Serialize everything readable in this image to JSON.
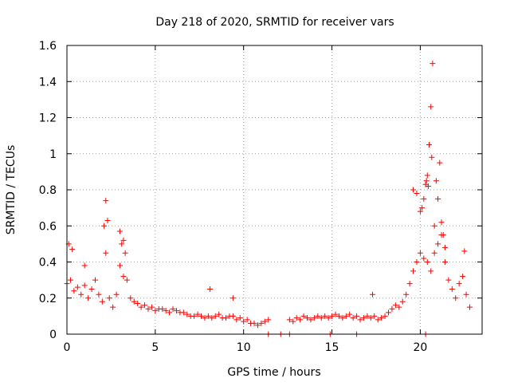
{
  "chart_data": {
    "type": "scatter",
    "title": "Day 218 of 2020, SRMTID for receiver vars",
    "xlabel": "GPS time / hours",
    "ylabel": "SRMTID / TECUs",
    "xlim": [
      0,
      23.5
    ],
    "ylim": [
      0,
      1.6
    ],
    "xticks": [
      0,
      5,
      10,
      15,
      20
    ],
    "xtick_labels": [
      "0",
      "5",
      "10",
      "15",
      "20"
    ],
    "yticks": [
      0,
      0.2,
      0.4,
      0.6,
      0.8,
      1.0,
      1.2,
      1.4,
      1.6
    ],
    "ytick_labels": [
      "0",
      "0.2",
      "0.4",
      "0.6",
      "0.8",
      "1",
      "1.2",
      "1.4",
      "1.6"
    ],
    "grid": true,
    "marker": "+",
    "marker_color": "#ff0000",
    "series": [
      {
        "name": "SRMTID",
        "x": [
          0.0,
          0.2,
          0.4,
          0.6,
          0.8,
          1.0,
          1.2,
          1.4,
          1.6,
          1.8,
          2.0,
          2.2,
          2.4,
          2.6,
          2.8,
          3.0,
          3.2,
          3.4,
          3.6,
          3.8,
          4.0,
          4.2,
          4.4,
          4.6,
          4.8,
          5.0,
          5.2,
          5.4,
          5.6,
          5.8,
          6.0,
          6.2,
          6.4,
          6.6,
          6.8,
          7.0,
          7.2,
          7.4,
          7.6,
          7.8,
          8.0,
          8.2,
          8.4,
          8.6,
          8.8,
          9.0,
          9.2,
          9.4,
          9.6,
          9.8,
          10.0,
          10.2,
          10.4,
          10.6,
          10.8,
          11.0,
          11.2,
          11.4,
          12.6,
          12.8,
          13.0,
          13.2,
          13.4,
          13.6,
          13.8,
          14.0,
          14.2,
          14.4,
          14.6,
          14.8,
          15.0,
          15.2,
          15.4,
          15.6,
          15.8,
          16.0,
          16.2,
          16.4,
          16.6,
          16.8,
          17.0,
          17.2,
          17.4,
          17.6,
          17.8,
          18.0,
          18.2,
          18.4,
          18.6,
          18.8,
          19.0,
          19.2,
          19.4,
          19.6,
          19.8,
          20.0,
          20.2,
          20.4,
          20.6,
          20.8,
          21.0,
          21.2,
          21.4,
          21.6,
          21.8,
          22.0,
          22.2,
          22.4,
          22.6,
          22.8,
          0.1,
          0.3,
          1.0,
          2.2,
          2.1,
          2.3,
          3.0,
          3.1,
          3.2,
          3.3,
          8.1,
          9.4,
          17.3,
          19.6,
          19.8,
          20.0,
          20.1,
          20.2,
          20.3,
          20.35,
          20.4,
          20.45,
          20.5,
          20.6,
          20.65,
          20.7,
          20.8,
          20.9,
          21.0,
          21.1,
          21.2,
          21.3,
          21.4,
          22.5,
          11.4,
          12.1,
          12.6,
          14.9,
          16.4,
          20.3
        ],
        "y": [
          0.28,
          0.3,
          0.24,
          0.26,
          0.22,
          0.27,
          0.2,
          0.25,
          0.3,
          0.22,
          0.18,
          0.45,
          0.2,
          0.15,
          0.22,
          0.38,
          0.32,
          0.3,
          0.2,
          0.18,
          0.17,
          0.15,
          0.16,
          0.14,
          0.15,
          0.13,
          0.14,
          0.14,
          0.13,
          0.12,
          0.14,
          0.13,
          0.12,
          0.12,
          0.11,
          0.1,
          0.1,
          0.11,
          0.1,
          0.09,
          0.1,
          0.09,
          0.1,
          0.11,
          0.09,
          0.09,
          0.1,
          0.1,
          0.08,
          0.09,
          0.07,
          0.08,
          0.06,
          0.06,
          0.05,
          0.06,
          0.07,
          0.08,
          0.08,
          0.07,
          0.09,
          0.08,
          0.1,
          0.09,
          0.08,
          0.09,
          0.1,
          0.09,
          0.1,
          0.09,
          0.1,
          0.11,
          0.1,
          0.09,
          0.1,
          0.11,
          0.09,
          0.1,
          0.08,
          0.09,
          0.1,
          0.09,
          0.1,
          0.08,
          0.09,
          0.1,
          0.12,
          0.14,
          0.16,
          0.15,
          0.18,
          0.22,
          0.28,
          0.35,
          0.4,
          0.45,
          0.42,
          0.4,
          0.35,
          0.45,
          0.5,
          0.55,
          0.4,
          0.3,
          0.25,
          0.2,
          0.28,
          0.32,
          0.22,
          0.15,
          0.5,
          0.47,
          0.38,
          0.74,
          0.6,
          0.63,
          0.57,
          0.5,
          0.52,
          0.45,
          0.25,
          0.2,
          0.22,
          0.8,
          0.78,
          0.68,
          0.7,
          0.75,
          0.83,
          0.85,
          0.88,
          0.82,
          1.05,
          1.26,
          0.98,
          1.5,
          0.6,
          0.85,
          0.75,
          0.95,
          0.62,
          0.55,
          0.48,
          0.46,
          0.0,
          0.0,
          0.0,
          0.0,
          0.0,
          0.0
        ]
      }
    ]
  }
}
